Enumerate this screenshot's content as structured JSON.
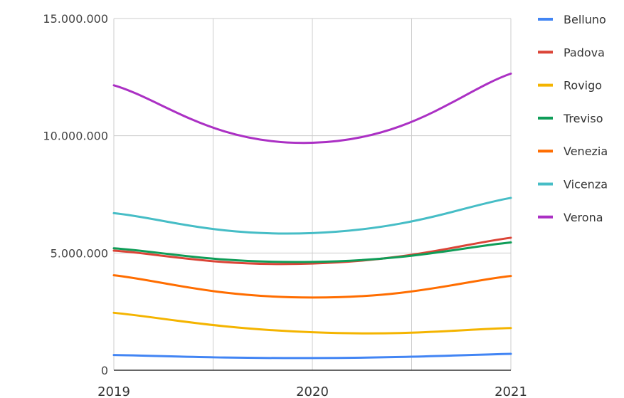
{
  "chart_data": {
    "type": "line",
    "title": "",
    "xlabel": "",
    "ylabel": "",
    "x": [
      "2019",
      "2020",
      "2021"
    ],
    "ylim": [
      0,
      15000000
    ],
    "y_ticks": [
      {
        "value": 0,
        "label": "0"
      },
      {
        "value": 5000000,
        "label": "5.000.000"
      },
      {
        "value": 10000000,
        "label": "10.000.000"
      },
      {
        "value": 15000000,
        "label": "15.000.000"
      }
    ],
    "grid": true,
    "legend_position": "right",
    "series": [
      {
        "name": "Belluno",
        "color": "#4285f4",
        "values": [
          650000,
          520000,
          700000
        ]
      },
      {
        "name": "Padova",
        "color": "#db4437",
        "values": [
          5100000,
          4550000,
          5650000
        ]
      },
      {
        "name": "Rovigo",
        "color": "#f4b400",
        "values": [
          2450000,
          1620000,
          1800000
        ]
      },
      {
        "name": "Treviso",
        "color": "#0f9d58",
        "values": [
          5200000,
          4620000,
          5450000
        ]
      },
      {
        "name": "Venezia",
        "color": "#ff6d00",
        "values": [
          4050000,
          3100000,
          4020000
        ]
      },
      {
        "name": "Vicenza",
        "color": "#46bdc6",
        "values": [
          6700000,
          5850000,
          7350000
        ]
      },
      {
        "name": "Verona",
        "color": "#ab30c4",
        "values": [
          12150000,
          9700000,
          12650000
        ]
      }
    ]
  }
}
